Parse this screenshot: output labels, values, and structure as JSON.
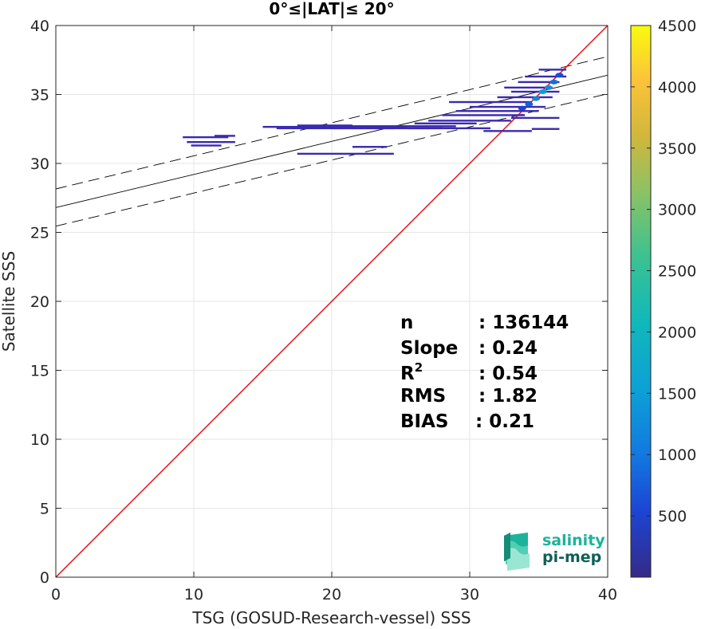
{
  "chart_data": {
    "type": "scatter",
    "title": "0°≤|LAT|≤ 20°",
    "xlabel": "TSG (GOSUD-Research-vessel) SSS",
    "ylabel": "Satellite SSS",
    "xlim": [
      0,
      40
    ],
    "ylim": [
      0,
      40
    ],
    "xticks": [
      "0",
      "10",
      "20",
      "30",
      "40"
    ],
    "yticks": [
      "0",
      "5",
      "10",
      "15",
      "20",
      "25",
      "30",
      "35",
      "40"
    ],
    "grid": true,
    "colorbar": {
      "range": [
        0,
        4500
      ],
      "ticks": [
        "500",
        "1000",
        "1500",
        "2000",
        "2500",
        "3000",
        "3500",
        "4000",
        "4500"
      ],
      "colormap": "parula"
    },
    "stats": [
      {
        "label": "n",
        "value": ": 136144"
      },
      {
        "label": "Slope",
        "value": ": 0.24"
      },
      {
        "label": "R",
        "sup": "2",
        "value": ": 0.54"
      },
      {
        "label": "RMS",
        "value": ": 1.82"
      },
      {
        "label": "BIAS",
        "value": ": 0.21"
      }
    ],
    "reference_lines": {
      "identity": {
        "slope": 1,
        "intercept": 0,
        "color": "#ff0000"
      },
      "fit": {
        "slope": 0.24,
        "intercept": 26.8,
        "color": "#000000"
      },
      "fit_upper": {
        "slope": 0.24,
        "intercept": 28.15,
        "color": "#000000",
        "style": "dashed"
      },
      "fit_lower": {
        "slope": 0.24,
        "intercept": 25.45,
        "color": "#000000",
        "style": "dashed"
      }
    },
    "density_segments": [
      {
        "x0": 9.2,
        "x1": 12.5,
        "y": 31.9
      },
      {
        "x0": 11.5,
        "x1": 13.0,
        "y": 32.0
      },
      {
        "x0": 9.5,
        "x1": 13.0,
        "y": 31.55
      },
      {
        "x0": 9.8,
        "x1": 12.0,
        "y": 31.3
      },
      {
        "x0": 15.0,
        "x1": 25.5,
        "y": 32.65
      },
      {
        "x0": 16.0,
        "x1": 24.5,
        "y": 32.55
      },
      {
        "x0": 17.5,
        "x1": 21.5,
        "y": 32.75
      },
      {
        "x0": 20.0,
        "x1": 28.0,
        "y": 32.55
      },
      {
        "x0": 21.0,
        "x1": 29.0,
        "y": 32.7
      },
      {
        "x0": 17.5,
        "x1": 24.5,
        "y": 30.7
      },
      {
        "x0": 21.5,
        "x1": 24.0,
        "y": 31.2
      },
      {
        "x0": 25.5,
        "x1": 31.5,
        "y": 32.55
      },
      {
        "x0": 26.0,
        "x1": 30.5,
        "y": 32.9
      },
      {
        "x0": 27.0,
        "x1": 33.0,
        "y": 33.1
      },
      {
        "x0": 28.0,
        "x1": 34.0,
        "y": 33.5
      },
      {
        "x0": 29.0,
        "x1": 35.0,
        "y": 33.8
      },
      {
        "x0": 30.0,
        "x1": 35.5,
        "y": 34.1
      },
      {
        "x0": 28.5,
        "x1": 34.5,
        "y": 34.45
      },
      {
        "x0": 32.0,
        "x1": 36.0,
        "y": 34.8
      },
      {
        "x0": 33.0,
        "x1": 36.5,
        "y": 35.2
      },
      {
        "x0": 32.5,
        "x1": 36.0,
        "y": 35.5
      },
      {
        "x0": 33.5,
        "x1": 36.5,
        "y": 35.9
      },
      {
        "x0": 34.0,
        "x1": 37.0,
        "y": 36.3
      },
      {
        "x0": 35.0,
        "x1": 37.0,
        "y": 36.8
      },
      {
        "x0": 31.0,
        "x1": 34.5,
        "y": 32.35
      },
      {
        "x0": 33.0,
        "x1": 36.5,
        "y": 33.3
      },
      {
        "x0": 34.5,
        "x1": 36.5,
        "y": 32.5
      }
    ],
    "density_core": [
      {
        "x": 34.3,
        "y": 34.3,
        "value": 800
      },
      {
        "x": 34.8,
        "y": 34.7,
        "value": 1200
      },
      {
        "x": 35.3,
        "y": 35.2,
        "value": 1500
      },
      {
        "x": 35.7,
        "y": 35.5,
        "value": 1300
      },
      {
        "x": 36.1,
        "y": 35.9,
        "value": 900
      },
      {
        "x": 36.5,
        "y": 36.4,
        "value": 600
      },
      {
        "x": 33.8,
        "y": 34.0,
        "value": 500
      }
    ]
  },
  "logo": {
    "line1": "salinity",
    "line2": "pi-mep"
  }
}
